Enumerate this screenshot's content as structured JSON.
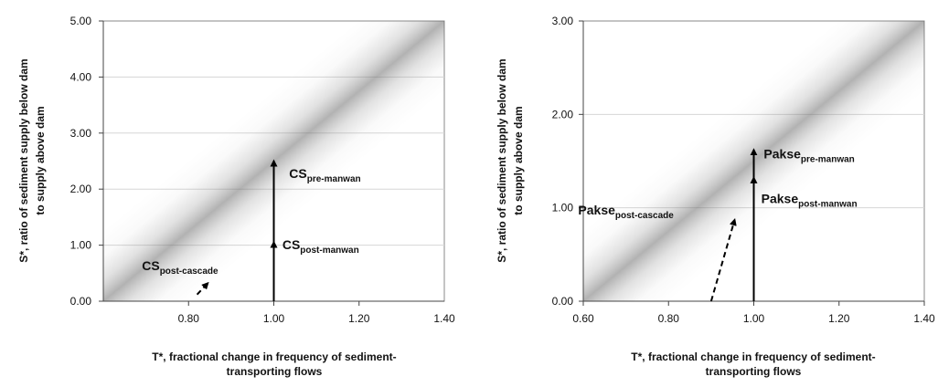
{
  "chart_data": [
    {
      "type": "line",
      "xlabel_lines": [
        "T*, fractional change in frequency of sediment-",
        "transporting flows"
      ],
      "ylabel_lines": [
        "S*, ratio of sediment supply below dam",
        "to supply above dam"
      ],
      "xlim": [
        0.6,
        1.4
      ],
      "ylim": [
        0.0,
        5.0
      ],
      "x_ticks": [
        0.8,
        1.0,
        1.2,
        1.4
      ],
      "x_tick_labels": [
        "0.80",
        "1.00",
        "1.20",
        "1.40"
      ],
      "y_ticks": [
        0,
        1,
        2,
        3,
        4,
        5
      ],
      "y_tick_labels": [
        "0.00",
        "1.00",
        "2.00",
        "3.00",
        "4.00",
        "5.00"
      ],
      "band": {
        "x": [
          0.6,
          1.4
        ],
        "y": [
          0.0,
          5.0
        ]
      },
      "arrows": [
        {
          "from": [
            1.0,
            0.0
          ],
          "to": [
            1.0,
            2.5
          ],
          "style": "solid"
        },
        {
          "from": [
            1.0,
            0.0
          ],
          "to": [
            1.0,
            1.05
          ],
          "style": "solid"
        },
        {
          "from": [
            0.82,
            0.12
          ],
          "to": [
            0.845,
            0.32
          ],
          "style": "dashed"
        }
      ],
      "annotations": [
        {
          "base": "CS",
          "sub": "pre-manwan",
          "x": 1.12,
          "y": 2.2
        },
        {
          "base": "CS",
          "sub": "post-manwan",
          "x": 1.11,
          "y": 0.93
        },
        {
          "base": "CS",
          "sub": "post-cascade",
          "x": 0.78,
          "y": 0.55
        }
      ]
    },
    {
      "type": "line",
      "xlabel_lines": [
        "T*, fractional change in frequency of sediment-",
        "transporting flows"
      ],
      "ylabel_lines": [
        "S*, ratio of sediment supply below dam",
        "to supply above dam"
      ],
      "xlim": [
        0.6,
        1.4
      ],
      "ylim": [
        0.0,
        3.0
      ],
      "x_ticks": [
        0.6,
        0.8,
        1.0,
        1.2,
        1.4
      ],
      "x_tick_labels": [
        "0.60",
        "0.80",
        "1.00",
        "1.20",
        "1.40"
      ],
      "y_ticks": [
        0,
        1,
        2,
        3
      ],
      "y_tick_labels": [
        "0.00",
        "1.00",
        "2.00",
        "3.00"
      ],
      "band": {
        "x": [
          0.6,
          1.4
        ],
        "y": [
          0.0,
          3.0
        ]
      },
      "arrows": [
        {
          "from": [
            1.0,
            0.0
          ],
          "to": [
            1.0,
            1.62
          ],
          "style": "solid"
        },
        {
          "from": [
            1.0,
            0.0
          ],
          "to": [
            1.0,
            1.32
          ],
          "style": "solid"
        },
        {
          "from": [
            0.9,
            0.0
          ],
          "to": [
            0.955,
            0.87
          ],
          "style": "dashed"
        }
      ],
      "annotations": [
        {
          "base": "Pakse",
          "sub": "pre-manwan",
          "x": 1.13,
          "y": 1.53
        },
        {
          "base": "Pakse",
          "sub": "post-manwan",
          "x": 1.13,
          "y": 1.05
        },
        {
          "base": "Pakse",
          "sub": "post-cascade",
          "x": 0.7,
          "y": 0.93
        }
      ]
    }
  ]
}
